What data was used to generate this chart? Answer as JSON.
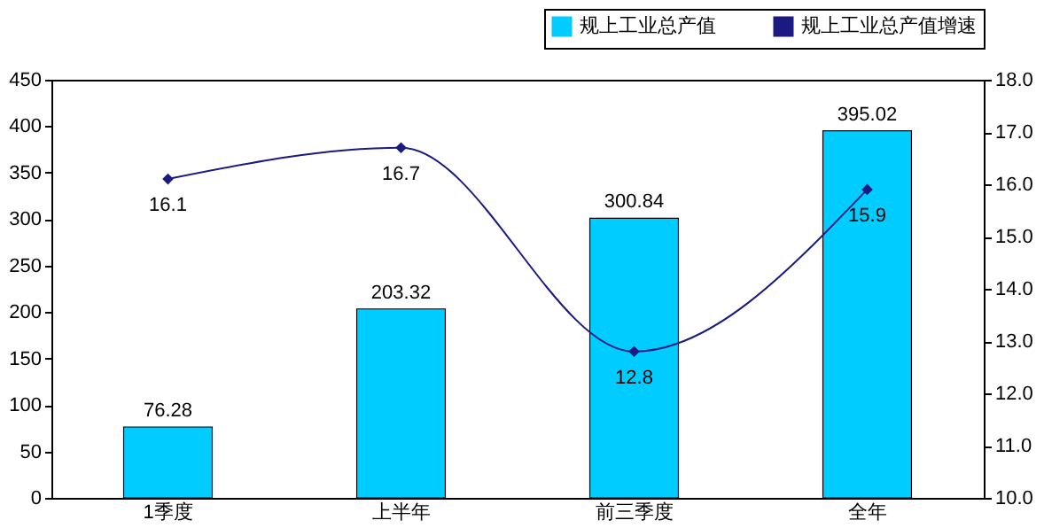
{
  "chart_data": {
    "type": "bar",
    "categories": [
      "1季度",
      "上半年",
      "前三季度",
      "全年"
    ],
    "series": [
      {
        "name": "规上工业总产值",
        "color": "#00ccff",
        "values": [
          76.28,
          203.32,
          300.84,
          395.02
        ]
      },
      {
        "name": "规上工业总产值增速",
        "type": "line",
        "axis": "y2",
        "color": "#1a1a80",
        "values": [
          16.1,
          16.7,
          12.8,
          15.9
        ]
      }
    ],
    "ylim": [
      0,
      450
    ],
    "yticks": [
      0,
      50,
      100,
      150,
      200,
      250,
      300,
      350,
      400,
      450
    ],
    "y2lim": [
      10,
      18
    ],
    "y2ticks": [
      {
        "value": 10,
        "label": "10.0"
      },
      {
        "value": 11,
        "label": "11.0"
      },
      {
        "value": 12,
        "label": "12.0"
      },
      {
        "value": 13,
        "label": "13.0"
      },
      {
        "value": 14,
        "label": "14.0"
      },
      {
        "value": 15,
        "label": "15.0"
      },
      {
        "value": 16,
        "label": "16.0"
      },
      {
        "value": 17,
        "label": "17.0"
      },
      {
        "value": 18,
        "label": "18.0"
      }
    ],
    "marker": "diamond",
    "data_labels": true,
    "legend": "top right"
  }
}
